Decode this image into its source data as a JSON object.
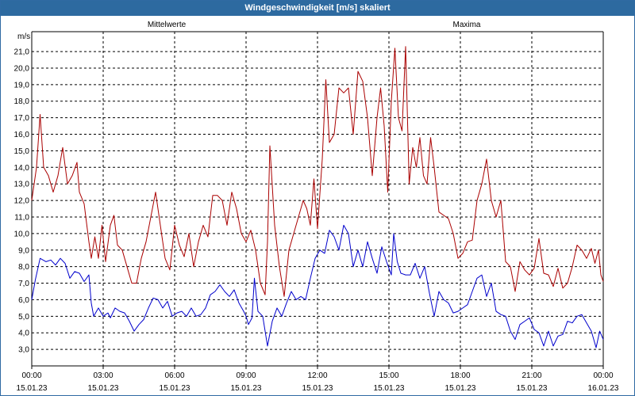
{
  "window": {
    "title": "Windgeschwindigkeit [m/s] skaliert"
  },
  "chart_data": {
    "type": "line",
    "title": "Windgeschwindigkeit [m/s] skaliert",
    "ylabel": "m/s",
    "ylim": [
      2.0,
      22.2
    ],
    "xlim": [
      0,
      24
    ],
    "grid": true,
    "legend": "top",
    "yticks": [
      "3,0",
      "4,0",
      "5,0",
      "6,0",
      "7,0",
      "8,0",
      "9,0",
      "10,0",
      "11,0",
      "12,0",
      "13,0",
      "14,0",
      "15,0",
      "16,0",
      "17,0",
      "18,0",
      "19,0",
      "20,0",
      "21,0"
    ],
    "xticks": [
      {
        "time": "00:00",
        "date": "15.01.23"
      },
      {
        "time": "03:00",
        "date": "15.01.23"
      },
      {
        "time": "06:00",
        "date": "15.01.23"
      },
      {
        "time": "09:00",
        "date": "15.01.23"
      },
      {
        "time": "12:00",
        "date": "15.01.23"
      },
      {
        "time": "15:00",
        "date": "15.01.23"
      },
      {
        "time": "18:00",
        "date": "15.01.23"
      },
      {
        "time": "21:00",
        "date": "15.01.23"
      },
      {
        "time": "00:00",
        "date": "16.01.23"
      }
    ],
    "series": [
      {
        "name": "Mittelwerte",
        "color": "#0000cc",
        "points": [
          [
            0.0,
            6.0
          ],
          [
            0.15,
            7.2
          ],
          [
            0.35,
            8.5
          ],
          [
            0.6,
            8.3
          ],
          [
            0.8,
            8.4
          ],
          [
            1.0,
            8.1
          ],
          [
            1.2,
            8.5
          ],
          [
            1.4,
            8.2
          ],
          [
            1.6,
            7.3
          ],
          [
            1.8,
            7.7
          ],
          [
            2.0,
            7.6
          ],
          [
            2.2,
            7.1
          ],
          [
            2.4,
            7.5
          ],
          [
            2.5,
            5.8
          ],
          [
            2.6,
            5.0
          ],
          [
            2.8,
            5.5
          ],
          [
            3.0,
            5.0
          ],
          [
            3.2,
            5.2
          ],
          [
            3.3,
            4.9
          ],
          [
            3.5,
            5.5
          ],
          [
            3.7,
            5.3
          ],
          [
            3.9,
            5.2
          ],
          [
            4.1,
            4.7
          ],
          [
            4.3,
            4.1
          ],
          [
            4.5,
            4.5
          ],
          [
            4.7,
            4.8
          ],
          [
            4.9,
            5.5
          ],
          [
            5.1,
            6.1
          ],
          [
            5.3,
            6.0
          ],
          [
            5.5,
            5.5
          ],
          [
            5.7,
            5.9
          ],
          [
            5.9,
            5.0
          ],
          [
            6.1,
            5.2
          ],
          [
            6.3,
            5.3
          ],
          [
            6.5,
            5.0
          ],
          [
            6.7,
            5.5
          ],
          [
            6.9,
            5.0
          ],
          [
            7.1,
            5.1
          ],
          [
            7.3,
            5.5
          ],
          [
            7.5,
            6.3
          ],
          [
            7.7,
            6.5
          ],
          [
            7.9,
            6.9
          ],
          [
            8.1,
            6.5
          ],
          [
            8.3,
            6.2
          ],
          [
            8.5,
            6.6
          ],
          [
            8.7,
            5.8
          ],
          [
            8.9,
            5.3
          ],
          [
            9.0,
            5.0
          ],
          [
            9.1,
            4.5
          ],
          [
            9.25,
            4.9
          ],
          [
            9.35,
            7.3
          ],
          [
            9.5,
            5.3
          ],
          [
            9.7,
            5.0
          ],
          [
            9.9,
            3.2
          ],
          [
            10.1,
            4.7
          ],
          [
            10.3,
            5.5
          ],
          [
            10.5,
            5.0
          ],
          [
            10.7,
            5.8
          ],
          [
            10.9,
            6.5
          ],
          [
            11.1,
            6.0
          ],
          [
            11.3,
            6.2
          ],
          [
            11.5,
            6.0
          ],
          [
            11.7,
            7.3
          ],
          [
            11.9,
            8.5
          ],
          [
            12.1,
            9.0
          ],
          [
            12.3,
            8.8
          ],
          [
            12.5,
            10.2
          ],
          [
            12.7,
            9.8
          ],
          [
            12.9,
            9.0
          ],
          [
            13.1,
            10.5
          ],
          [
            13.3,
            10.0
          ],
          [
            13.5,
            8.0
          ],
          [
            13.7,
            9.0
          ],
          [
            13.9,
            8.0
          ],
          [
            14.1,
            9.5
          ],
          [
            14.3,
            8.5
          ],
          [
            14.5,
            7.6
          ],
          [
            14.7,
            9.2
          ],
          [
            14.9,
            8.3
          ],
          [
            15.1,
            7.5
          ],
          [
            15.2,
            10.0
          ],
          [
            15.35,
            8.3
          ],
          [
            15.5,
            7.6
          ],
          [
            15.7,
            7.5
          ],
          [
            15.9,
            7.5
          ],
          [
            16.1,
            8.2
          ],
          [
            16.3,
            7.3
          ],
          [
            16.5,
            8.0
          ],
          [
            16.7,
            6.4
          ],
          [
            16.9,
            5.0
          ],
          [
            17.1,
            6.5
          ],
          [
            17.3,
            6.0
          ],
          [
            17.5,
            5.8
          ],
          [
            17.7,
            5.2
          ],
          [
            17.9,
            5.3
          ],
          [
            18.1,
            5.5
          ],
          [
            18.3,
            5.7
          ],
          [
            18.5,
            6.5
          ],
          [
            18.7,
            7.3
          ],
          [
            18.9,
            7.5
          ],
          [
            19.1,
            6.2
          ],
          [
            19.3,
            7.0
          ],
          [
            19.5,
            5.3
          ],
          [
            19.7,
            5.1
          ],
          [
            19.9,
            5.0
          ],
          [
            20.1,
            4.1
          ],
          [
            20.3,
            3.6
          ],
          [
            20.5,
            4.5
          ],
          [
            20.7,
            4.7
          ],
          [
            20.9,
            4.9
          ],
          [
            21.1,
            4.2
          ],
          [
            21.3,
            4.0
          ],
          [
            21.5,
            3.2
          ],
          [
            21.7,
            4.1
          ],
          [
            21.9,
            3.2
          ],
          [
            22.1,
            3.8
          ],
          [
            22.3,
            3.9
          ],
          [
            22.5,
            4.7
          ],
          [
            22.7,
            4.6
          ],
          [
            22.9,
            5.0
          ],
          [
            23.1,
            5.1
          ],
          [
            23.3,
            4.6
          ],
          [
            23.5,
            4.1
          ],
          [
            23.7,
            3.1
          ],
          [
            23.85,
            4.1
          ],
          [
            24.0,
            3.6
          ]
        ]
      },
      {
        "name": "Maxima",
        "color": "#aa0000",
        "points": [
          [
            0.0,
            12.0
          ],
          [
            0.2,
            14.0
          ],
          [
            0.35,
            17.2
          ],
          [
            0.5,
            14.0
          ],
          [
            0.7,
            13.5
          ],
          [
            0.9,
            12.5
          ],
          [
            1.1,
            13.5
          ],
          [
            1.3,
            15.2
          ],
          [
            1.5,
            13.0
          ],
          [
            1.7,
            13.5
          ],
          [
            1.9,
            14.3
          ],
          [
            2.0,
            12.5
          ],
          [
            2.2,
            11.8
          ],
          [
            2.4,
            9.5
          ],
          [
            2.5,
            8.5
          ],
          [
            2.65,
            9.8
          ],
          [
            2.8,
            8.5
          ],
          [
            2.95,
            10.5
          ],
          [
            3.1,
            8.3
          ],
          [
            3.3,
            10.5
          ],
          [
            3.45,
            11.1
          ],
          [
            3.6,
            9.3
          ],
          [
            3.8,
            9.0
          ],
          [
            4.0,
            8.0
          ],
          [
            4.2,
            7.0
          ],
          [
            4.4,
            7.0
          ],
          [
            4.6,
            8.5
          ],
          [
            4.8,
            9.5
          ],
          [
            5.0,
            11.0
          ],
          [
            5.2,
            12.5
          ],
          [
            5.4,
            10.5
          ],
          [
            5.6,
            8.5
          ],
          [
            5.8,
            7.8
          ],
          [
            6.0,
            10.5
          ],
          [
            6.2,
            9.3
          ],
          [
            6.4,
            8.6
          ],
          [
            6.6,
            10.0
          ],
          [
            6.8,
            8.0
          ],
          [
            7.0,
            9.5
          ],
          [
            7.2,
            10.5
          ],
          [
            7.4,
            9.8
          ],
          [
            7.6,
            12.3
          ],
          [
            7.8,
            12.3
          ],
          [
            8.0,
            12.0
          ],
          [
            8.2,
            10.5
          ],
          [
            8.4,
            12.5
          ],
          [
            8.6,
            11.5
          ],
          [
            8.8,
            10.0
          ],
          [
            9.0,
            9.5
          ],
          [
            9.2,
            10.2
          ],
          [
            9.4,
            9.0
          ],
          [
            9.6,
            7.0
          ],
          [
            9.8,
            6.3
          ],
          [
            9.9,
            9.5
          ],
          [
            10.0,
            15.3
          ],
          [
            10.2,
            10.5
          ],
          [
            10.4,
            8.0
          ],
          [
            10.6,
            6.2
          ],
          [
            10.8,
            9.0
          ],
          [
            11.0,
            10.0
          ],
          [
            11.2,
            11.0
          ],
          [
            11.4,
            12.0
          ],
          [
            11.55,
            11.5
          ],
          [
            11.7,
            10.5
          ],
          [
            11.85,
            13.3
          ],
          [
            12.0,
            10.3
          ],
          [
            12.2,
            14.5
          ],
          [
            12.35,
            19.3
          ],
          [
            12.5,
            15.5
          ],
          [
            12.7,
            16.0
          ],
          [
            12.9,
            18.8
          ],
          [
            13.1,
            18.5
          ],
          [
            13.3,
            18.8
          ],
          [
            13.5,
            16.0
          ],
          [
            13.7,
            19.8
          ],
          [
            13.9,
            19.2
          ],
          [
            14.1,
            17.0
          ],
          [
            14.3,
            13.5
          ],
          [
            14.5,
            17.0
          ],
          [
            14.65,
            18.8
          ],
          [
            14.8,
            16.5
          ],
          [
            14.95,
            12.5
          ],
          [
            15.1,
            18.0
          ],
          [
            15.25,
            21.2
          ],
          [
            15.4,
            17.0
          ],
          [
            15.55,
            16.2
          ],
          [
            15.7,
            21.3
          ],
          [
            15.85,
            13.0
          ],
          [
            16.0,
            15.2
          ],
          [
            16.15,
            14.0
          ],
          [
            16.3,
            15.8
          ],
          [
            16.45,
            13.5
          ],
          [
            16.6,
            13.0
          ],
          [
            16.75,
            15.8
          ],
          [
            16.9,
            14.0
          ],
          [
            17.1,
            11.3
          ],
          [
            17.3,
            11.1
          ],
          [
            17.5,
            10.9
          ],
          [
            17.7,
            10.0
          ],
          [
            17.9,
            8.5
          ],
          [
            18.1,
            8.8
          ],
          [
            18.3,
            9.5
          ],
          [
            18.5,
            9.6
          ],
          [
            18.7,
            12.0
          ],
          [
            18.9,
            13.0
          ],
          [
            19.1,
            14.5
          ],
          [
            19.3,
            12.0
          ],
          [
            19.5,
            11.0
          ],
          [
            19.7,
            12.0
          ],
          [
            19.9,
            8.3
          ],
          [
            20.1,
            8.0
          ],
          [
            20.3,
            6.5
          ],
          [
            20.5,
            8.3
          ],
          [
            20.7,
            7.8
          ],
          [
            20.9,
            7.5
          ],
          [
            21.1,
            7.9
          ],
          [
            21.3,
            9.7
          ],
          [
            21.5,
            7.6
          ],
          [
            21.7,
            7.5
          ],
          [
            21.9,
            6.8
          ],
          [
            22.1,
            7.9
          ],
          [
            22.3,
            6.7
          ],
          [
            22.5,
            7.0
          ],
          [
            22.7,
            8.0
          ],
          [
            22.9,
            9.3
          ],
          [
            23.1,
            9.0
          ],
          [
            23.3,
            8.5
          ],
          [
            23.5,
            9.1
          ],
          [
            23.65,
            8.2
          ],
          [
            23.8,
            9.0
          ],
          [
            23.9,
            7.5
          ],
          [
            24.0,
            7.1
          ]
        ]
      }
    ]
  }
}
